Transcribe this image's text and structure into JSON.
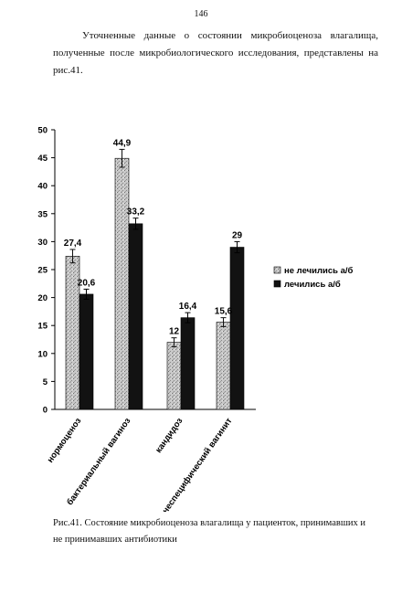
{
  "page_number": "146",
  "intro": {
    "line1": "Уточненные данные о состоянии микробиоценоза влагалища,",
    "line2": "полученные после микробиологического исследования, представлены на",
    "line3": "рис.41."
  },
  "chart_data": {
    "type": "bar",
    "categories": [
      "нормоценоз",
      "бактериальный вагиноз",
      "кандидоз",
      "неспецифический вагинит"
    ],
    "series": [
      {
        "name": "не лечились а/б",
        "values": [
          27.4,
          44.9,
          12,
          15.6
        ],
        "labels": [
          "27,4",
          "44,9",
          "12",
          "15,6"
        ],
        "errors": [
          1.2,
          1.6,
          0.8,
          0.8
        ],
        "color": "#bdbdbd",
        "pattern": "stippled-grey"
      },
      {
        "name": "лечились а/б",
        "values": [
          20.6,
          33.2,
          16.4,
          29
        ],
        "labels": [
          "20,6",
          "33,2",
          "16,4",
          "29"
        ],
        "errors": [
          0.9,
          1.0,
          0.9,
          1.0
        ],
        "color": "#111111",
        "pattern": "solid-black"
      }
    ],
    "ylim": [
      0,
      50
    ],
    "yticks": [
      "0",
      "5",
      "10",
      "15",
      "20",
      "25",
      "30",
      "35",
      "40",
      "45",
      "50"
    ],
    "legend_position": "right",
    "grid": false
  },
  "caption": {
    "line1": "Рис.41. Состояние микробиоценоза влагалища у пациенток, принимавших и",
    "line2": "не принимавших антибиотики"
  }
}
